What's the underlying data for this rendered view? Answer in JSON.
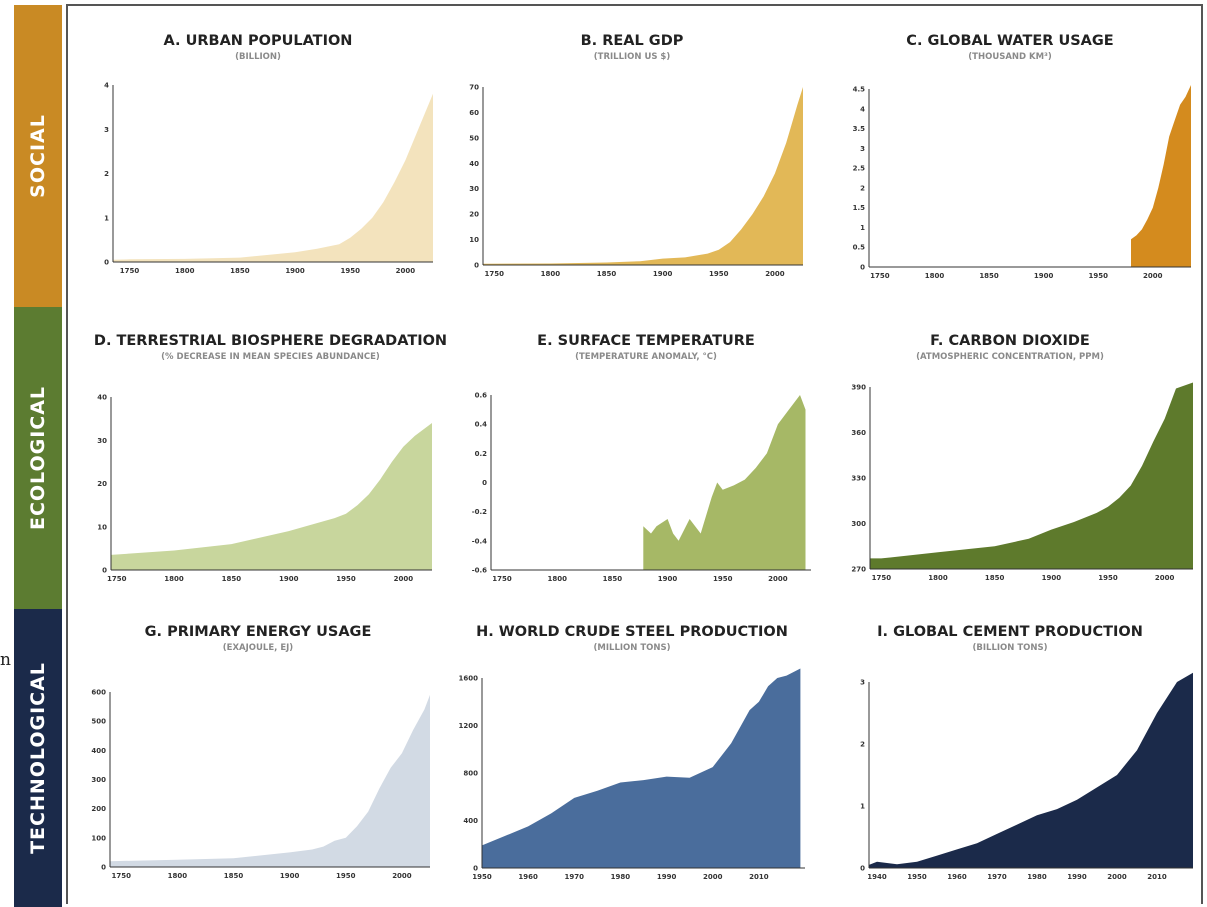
{
  "stray_char": "n",
  "bands": [
    {
      "label": "SOCIAL",
      "color": "#c98a24"
    },
    {
      "label": "ECOLOGICAL",
      "color": "#5c7c31"
    },
    {
      "label": "TECHNOLOGICAL",
      "color": "#1b2a4a"
    }
  ],
  "chart_data": [
    {
      "id": "A",
      "type": "area",
      "title": "A. URBAN POPULATION",
      "subtitle": "(BILLION)",
      "color": "#f3e3bd",
      "xlim": [
        1735,
        2025
      ],
      "ylim": [
        0,
        4
      ],
      "xticks": [
        1750,
        1800,
        1850,
        1900,
        1950,
        2000
      ],
      "yticks": [
        0,
        1,
        2,
        3,
        4
      ],
      "x": [
        1735,
        1750,
        1800,
        1850,
        1900,
        1920,
        1940,
        1950,
        1960,
        1970,
        1980,
        1990,
        2000,
        2010,
        2025
      ],
      "y": [
        0.05,
        0.06,
        0.07,
        0.1,
        0.22,
        0.3,
        0.4,
        0.55,
        0.75,
        1.0,
        1.35,
        1.8,
        2.3,
        2.9,
        3.8
      ]
    },
    {
      "id": "B",
      "type": "area",
      "title": "B. REAL GDP",
      "subtitle": "(TRILLION US $)",
      "color": "#e2b857",
      "xlim": [
        1740,
        2025
      ],
      "ylim": [
        0,
        70
      ],
      "xticks": [
        1750,
        1800,
        1850,
        1900,
        1950,
        2000
      ],
      "yticks": [
        0,
        10,
        20,
        30,
        40,
        50,
        60,
        70
      ],
      "x": [
        1740,
        1800,
        1850,
        1880,
        1900,
        1920,
        1940,
        1950,
        1960,
        1970,
        1980,
        1990,
        2000,
        2010,
        2020,
        2025
      ],
      "y": [
        0.5,
        0.6,
        1,
        1.5,
        2.5,
        3,
        4.5,
        6,
        9,
        14,
        20,
        27,
        36,
        48,
        63,
        70
      ]
    },
    {
      "id": "C",
      "type": "area",
      "title": "C. GLOBAL WATER USAGE",
      "subtitle": "(THOUSAND KM³)",
      "color": "#d48b1e",
      "xlim": [
        1740,
        2035
      ],
      "ylim": [
        0,
        4.5
      ],
      "xticks": [
        1750,
        1800,
        1850,
        1900,
        1950,
        2000
      ],
      "xticklabels": [
        "1750",
        "1800",
        "1850",
        "1900",
        "1950",
        "2000"
      ],
      "yticks": [
        0,
        0.5,
        1,
        1.5,
        2,
        2.5,
        3,
        3.5,
        4,
        4.5
      ],
      "x": [
        1980,
        1985,
        1990,
        1995,
        2000,
        2005,
        2010,
        2015,
        2020,
        2025,
        2030,
        2035
      ],
      "y": [
        0.7,
        0.8,
        0.95,
        1.2,
        1.5,
        2.0,
        2.6,
        3.3,
        3.7,
        4.1,
        4.3,
        4.6
      ]
    },
    {
      "id": "D",
      "type": "area",
      "title": "D. TERRESTRIAL BIOSPHERE DEGRADATION",
      "subtitle": "(% DECREASE IN MEAN SPECIES ABUNDANCE)",
      "color": "#c8d69d",
      "xlim": [
        1745,
        2025
      ],
      "ylim": [
        0,
        40
      ],
      "xticks": [
        1750,
        1800,
        1850,
        1900,
        1950,
        2000
      ],
      "yticks": [
        0,
        10,
        20,
        30,
        40
      ],
      "x": [
        1745,
        1800,
        1850,
        1900,
        1920,
        1940,
        1950,
        1960,
        1970,
        1980,
        1990,
        2000,
        2010,
        2025
      ],
      "y": [
        3.5,
        4.5,
        6,
        9,
        10.5,
        12,
        13,
        15,
        17.5,
        21,
        25,
        28.5,
        31,
        34
      ]
    },
    {
      "id": "E",
      "type": "area",
      "title": "E. SURFACE TEMPERATURE",
      "subtitle": "(TEMPERATURE ANOMALY,  °C)",
      "color": "#a6b866",
      "xlim": [
        1740,
        2030
      ],
      "ylim": [
        -0.6,
        0.6
      ],
      "xticks": [
        1750,
        1800,
        1850,
        1900,
        1950,
        2000
      ],
      "yticks": [
        -0.6,
        -0.4,
        -0.2,
        0,
        0.2,
        0.4,
        0.6
      ],
      "x": [
        1878,
        1885,
        1890,
        1900,
        1905,
        1910,
        1920,
        1930,
        1940,
        1945,
        1950,
        1960,
        1970,
        1980,
        1990,
        2000,
        2010,
        2020,
        2025
      ],
      "y": [
        -0.3,
        -0.35,
        -0.3,
        -0.25,
        -0.35,
        -0.4,
        -0.25,
        -0.35,
        -0.1,
        0,
        -0.05,
        -0.02,
        0.02,
        0.1,
        0.2,
        0.4,
        0.5,
        0.6,
        0.5
      ]
    },
    {
      "id": "F",
      "type": "area",
      "title": "F. CARBON DIOXIDE",
      "subtitle": "(ATMOSPHERIC CONCENTRATION, PPM)",
      "color": "#5e7a2c",
      "xlim": [
        1740,
        2025
      ],
      "ylim": [
        270,
        390
      ],
      "xticks": [
        1750,
        1800,
        1850,
        1900,
        1950,
        2000
      ],
      "yticks": [
        270,
        300,
        330,
        360,
        390
      ],
      "x": [
        1740,
        1750,
        1800,
        1850,
        1880,
        1900,
        1920,
        1940,
        1950,
        1960,
        1970,
        1980,
        1990,
        2000,
        2010,
        2025
      ],
      "y": [
        277,
        277,
        281,
        285,
        290,
        296,
        301,
        307,
        311,
        317,
        325,
        338,
        354,
        369,
        389,
        393
      ]
    },
    {
      "id": "G",
      "type": "area",
      "title": "G. PRIMARY ENERGY USAGE",
      "subtitle": "(EXAJOULE, EJ)",
      "color": "#d2dae4",
      "xlim": [
        1740,
        2025
      ],
      "ylim": [
        0,
        600
      ],
      "xticks": [
        1750,
        1800,
        1850,
        1900,
        1950,
        2000
      ],
      "yticks": [
        0,
        100,
        200,
        300,
        400,
        500,
        600
      ],
      "x": [
        1740,
        1800,
        1850,
        1900,
        1920,
        1930,
        1940,
        1950,
        1960,
        1970,
        1980,
        1990,
        2000,
        2010,
        2020,
        2025
      ],
      "y": [
        20,
        25,
        30,
        50,
        60,
        70,
        90,
        100,
        140,
        190,
        270,
        340,
        390,
        470,
        540,
        590
      ]
    },
    {
      "id": "H",
      "type": "area",
      "title": "H. WORLD CRUDE STEEL PRODUCTION",
      "subtitle": "(MILLION TONS)",
      "color": "#4a6d9c",
      "xlim": [
        1950,
        2020
      ],
      "ylim": [
        0,
        1600
      ],
      "xticks": [
        1950,
        1960,
        1970,
        1980,
        1990,
        2000,
        2010
      ],
      "yticks": [
        0,
        400,
        800,
        1200,
        1600
      ],
      "x": [
        1950,
        1955,
        1960,
        1965,
        1970,
        1975,
        1980,
        1985,
        1990,
        1995,
        2000,
        2004,
        2008,
        2010,
        2012,
        2014,
        2016,
        2019
      ],
      "y": [
        190,
        270,
        350,
        460,
        590,
        650,
        720,
        740,
        770,
        760,
        850,
        1050,
        1330,
        1400,
        1530,
        1600,
        1620,
        1700
      ]
    },
    {
      "id": "I",
      "type": "area",
      "title": "I. GLOBAL CEMENT PRODUCTION",
      "subtitle": "(BILLION TONS)",
      "color": "#1b2a4a",
      "xlim": [
        1938,
        2019
      ],
      "ylim": [
        0,
        3
      ],
      "xticks": [
        1940,
        1950,
        1960,
        1970,
        1980,
        1990,
        2000,
        2010
      ],
      "yticks": [
        0,
        1,
        2,
        3
      ],
      "x": [
        1938,
        1940,
        1945,
        1950,
        1955,
        1960,
        1965,
        1970,
        1975,
        1980,
        1985,
        1990,
        1995,
        2000,
        2005,
        2010,
        2015,
        2019
      ],
      "y": [
        0.05,
        0.1,
        0.06,
        0.1,
        0.2,
        0.3,
        0.4,
        0.55,
        0.7,
        0.85,
        0.95,
        1.1,
        1.3,
        1.5,
        1.9,
        2.5,
        3.0,
        3.3
      ]
    }
  ]
}
